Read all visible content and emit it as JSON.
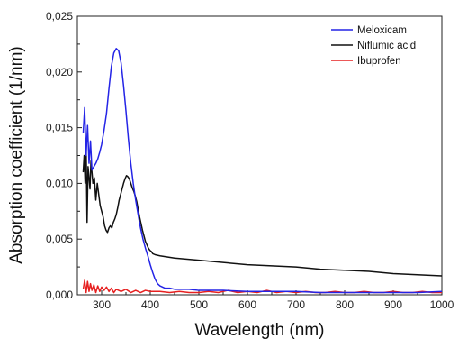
{
  "chart_data": {
    "type": "line",
    "title": "",
    "xlabel": "Wavelength (nm)",
    "ylabel": "Absorption coefficient (1/nm)",
    "xlim": [
      250,
      1000
    ],
    "ylim": [
      0,
      0.025
    ],
    "xticks": [
      300,
      400,
      500,
      600,
      700,
      800,
      900,
      1000
    ],
    "xtick_labels": [
      "300",
      "400",
      "500",
      "600",
      "700",
      "800",
      "900",
      "1000"
    ],
    "yticks": [
      0,
      0.005,
      0.01,
      0.015,
      0.02,
      0.025
    ],
    "ytick_labels": [
      "0,000",
      "0,005",
      "0,010",
      "0,015",
      "0,020",
      "0,025"
    ],
    "grid": false,
    "legend_position": "top-right",
    "series": [
      {
        "name": "Meloxicam",
        "color": "#2424e6",
        "x": [
          262,
          265,
          268,
          271,
          274,
          277,
          280,
          284,
          288,
          292,
          296,
          300,
          305,
          310,
          315,
          320,
          325,
          330,
          335,
          340,
          345,
          350,
          355,
          360,
          365,
          370,
          375,
          380,
          385,
          390,
          395,
          400,
          405,
          410,
          415,
          420,
          430,
          440,
          450,
          460,
          480,
          500,
          550,
          600,
          650,
          700,
          750,
          800,
          850,
          900,
          950,
          1000
        ],
        "y": [
          0.0145,
          0.0168,
          0.0125,
          0.0152,
          0.0118,
          0.0138,
          0.0112,
          0.0115,
          0.0118,
          0.0122,
          0.0128,
          0.0135,
          0.0148,
          0.0163,
          0.0185,
          0.0205,
          0.0217,
          0.0221,
          0.0219,
          0.0208,
          0.0188,
          0.0165,
          0.014,
          0.0118,
          0.01,
          0.0085,
          0.0072,
          0.006,
          0.005,
          0.0042,
          0.0035,
          0.0027,
          0.002,
          0.0014,
          0.001,
          0.0008,
          0.0006,
          0.0006,
          0.0005,
          0.0005,
          0.0005,
          0.0004,
          0.0004,
          0.0003,
          0.0003,
          0.0003,
          0.0002,
          0.0002,
          0.0002,
          0.0002,
          0.0002,
          0.0003
        ]
      },
      {
        "name": "Niflumic acid",
        "color": "#111111",
        "x": [
          262,
          264,
          266,
          268,
          270,
          272,
          274,
          276,
          278,
          280,
          282,
          285,
          288,
          291,
          294,
          297,
          300,
          303,
          306,
          309,
          312,
          315,
          318,
          321,
          324,
          327,
          330,
          333,
          336,
          339,
          342,
          345,
          348,
          351,
          354,
          357,
          360,
          363,
          366,
          369,
          372,
          375,
          378,
          381,
          384,
          387,
          390,
          393,
          396,
          399,
          402,
          405,
          410,
          420,
          450,
          500,
          550,
          600,
          650,
          700,
          750,
          800,
          850,
          900,
          950,
          1000
        ],
        "y": [
          0.011,
          0.0125,
          0.01,
          0.0135,
          0.0065,
          0.0115,
          0.0105,
          0.0095,
          0.012,
          0.011,
          0.01,
          0.0105,
          0.0085,
          0.01,
          0.009,
          0.008,
          0.0075,
          0.007,
          0.0062,
          0.0058,
          0.0056,
          0.006,
          0.0062,
          0.006,
          0.0065,
          0.0068,
          0.0072,
          0.0078,
          0.0085,
          0.009,
          0.0095,
          0.01,
          0.0104,
          0.0107,
          0.0106,
          0.0104,
          0.01,
          0.0096,
          0.0093,
          0.0089,
          0.0084,
          0.0077,
          0.007,
          0.0064,
          0.0058,
          0.0053,
          0.0048,
          0.0045,
          0.0042,
          0.004,
          0.0039,
          0.0037,
          0.0036,
          0.0035,
          0.0033,
          0.0031,
          0.0029,
          0.0027,
          0.0026,
          0.0025,
          0.0023,
          0.0022,
          0.0021,
          0.0019,
          0.0018,
          0.0017
        ]
      },
      {
        "name": "Ibuprofen",
        "color": "#e62020",
        "x": [
          262,
          265,
          268,
          271,
          274,
          277,
          280,
          284,
          288,
          292,
          296,
          300,
          305,
          310,
          315,
          320,
          325,
          330,
          340,
          350,
          360,
          370,
          380,
          390,
          400,
          420,
          440,
          460,
          480,
          500,
          520,
          540,
          560,
          580,
          600,
          620,
          640,
          660,
          680,
          700,
          720,
          740,
          760,
          780,
          800,
          820,
          840,
          860,
          880,
          900,
          920,
          940,
          960,
          980,
          1000
        ],
        "y": [
          0.0005,
          0.0013,
          0.0002,
          0.0012,
          0.0003,
          0.001,
          0.0004,
          0.0009,
          0.0002,
          0.0008,
          0.0003,
          0.0007,
          0.0004,
          0.0007,
          0.0003,
          0.0006,
          0.0002,
          0.0005,
          0.0003,
          0.0005,
          0.0002,
          0.0004,
          0.0002,
          0.0004,
          0.0003,
          0.0003,
          0.0002,
          0.0003,
          0.0002,
          0.0002,
          0.0003,
          0.0002,
          0.0004,
          0.0002,
          0.0003,
          0.0002,
          0.0004,
          0.0002,
          0.0003,
          0.0002,
          0.0003,
          0.0002,
          0.0002,
          0.0003,
          0.0002,
          0.0002,
          0.0003,
          0.0002,
          0.0002,
          0.0003,
          0.0002,
          0.0002,
          0.0003,
          0.0002,
          0.0002
        ]
      }
    ]
  }
}
